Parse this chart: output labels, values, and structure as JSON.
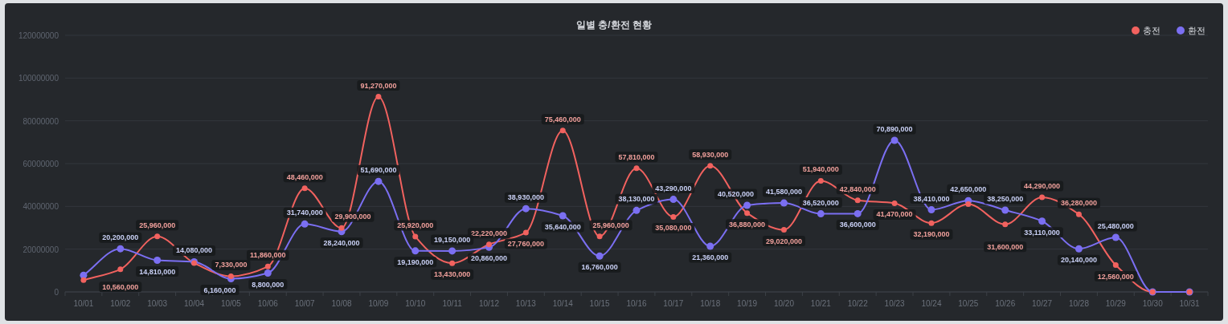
{
  "chart_data": {
    "type": "line",
    "title": "일별 충/환전 현황",
    "categories": [
      "10/01",
      "10/02",
      "10/03",
      "10/04",
      "10/05",
      "10/06",
      "10/07",
      "10/08",
      "10/09",
      "10/10",
      "10/11",
      "10/12",
      "10/13",
      "10/14",
      "10/15",
      "10/16",
      "10/17",
      "10/18",
      "10/19",
      "10/20",
      "10/21",
      "10/22",
      "10/23",
      "10/24",
      "10/25",
      "10/26",
      "10/27",
      "10/28",
      "10/29",
      "10/30",
      "10/31"
    ],
    "series": [
      {
        "name": "충전",
        "color": "#f2625f",
        "values": [
          5500000,
          10560000,
          25960000,
          13500000,
          7330000,
          11860000,
          48460000,
          29900000,
          91270000,
          25920000,
          13430000,
          22220000,
          27760000,
          75460000,
          25960000,
          57810000,
          35080000,
          58930000,
          36880000,
          29020000,
          51940000,
          42840000,
          41470000,
          32190000,
          41050000,
          31600000,
          44290000,
          36280000,
          12560000,
          0,
          0
        ],
        "value_labels": [
          null,
          "10,560,000",
          "25,960,000",
          null,
          "7,330,000",
          "11,860,000",
          "48,460,000",
          "29,900,000",
          "91,270,000",
          "25,920,000",
          "13,430,000",
          "22,220,000",
          "27,760,000",
          "75,460,000",
          "25,960,000",
          "57,810,000",
          "35,080,000",
          "58,930,000",
          "36,880,000",
          "29,020,000",
          "51,940,000",
          "42,840,000",
          "41,470,000",
          "32,190,000",
          null,
          "31,600,000",
          "44,290,000",
          "36,280,000",
          "12,560,000",
          null,
          null
        ]
      },
      {
        "name": "환전",
        "color": "#7b6ff2",
        "values": [
          7800000,
          20200000,
          14810000,
          14080000,
          6160000,
          8800000,
          31740000,
          28240000,
          51690000,
          19190000,
          19150000,
          20860000,
          38930000,
          35640000,
          16760000,
          38130000,
          43290000,
          21360000,
          40520000,
          41580000,
          36520000,
          36600000,
          70890000,
          38410000,
          42650000,
          38250000,
          33110000,
          20140000,
          25480000,
          0,
          0
        ],
        "value_labels": [
          null,
          "20,200,000",
          "14,810,000",
          "14,080,000",
          "6,160,000",
          "8,800,000",
          "31,740,000",
          "28,240,000",
          "51,690,000",
          "19,190,000",
          "19,150,000",
          "20,860,000",
          "38,930,000",
          "35,640,000",
          "16,760,000",
          "38,130,000",
          "43,290,000",
          "21,360,000",
          "40,520,000",
          "41,580,000",
          "36,520,000",
          "36,600,000",
          "70,890,000",
          "38,410,000",
          "42,650,000",
          "38,250,000",
          "33,110,000",
          "20,140,000",
          "25,480,000",
          null,
          null
        ]
      }
    ],
    "ylim": [
      0,
      120000000
    ],
    "yticks": [
      0,
      20000000,
      40000000,
      60000000,
      80000000,
      100000000,
      120000000
    ],
    "grid": "y",
    "legend": "top right",
    "marker": "circle",
    "line_style": "solid"
  }
}
